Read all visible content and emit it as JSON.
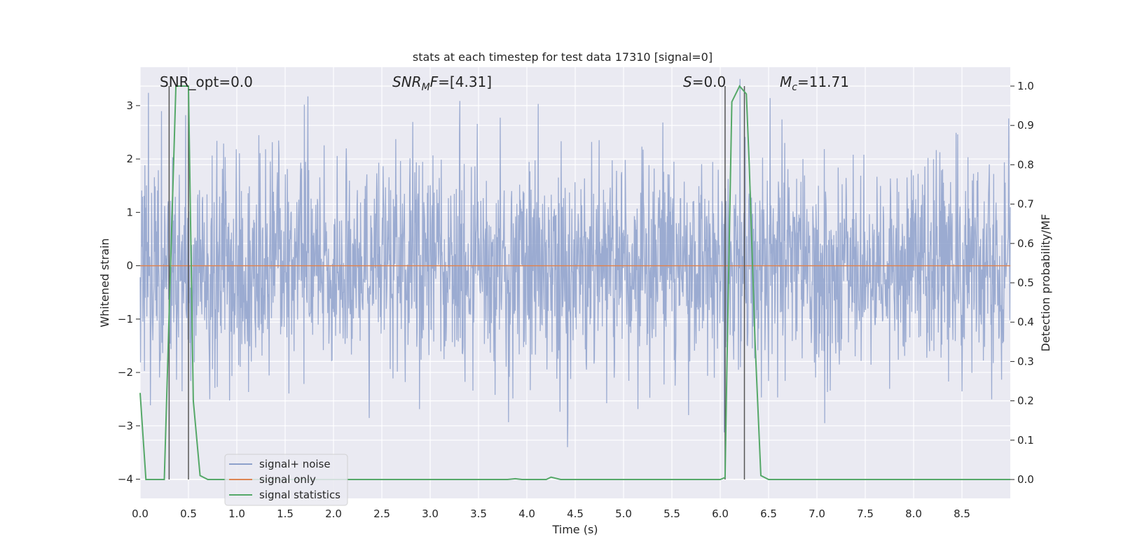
{
  "chart_data": {
    "type": "line",
    "title": "stats at each timestep for test data 17310 [signal=0]",
    "xlabel": "Time (s)",
    "ylabel_left": "Whitened strain",
    "ylabel_right": "Detection probability/MF",
    "xlim": [
      0.0,
      9.0
    ],
    "ylim_left": [
      -4.36,
      3.72
    ],
    "ylim_right": [
      -0.048,
      1.048
    ],
    "grid": true,
    "legend_position": "lower-left",
    "x_ticks": [
      "0.0",
      "0.5",
      "1.0",
      "1.5",
      "2.0",
      "2.5",
      "3.0",
      "3.5",
      "4.0",
      "4.5",
      "5.0",
      "5.5",
      "6.0",
      "6.5",
      "7.0",
      "7.5",
      "8.0",
      "8.5"
    ],
    "y_left_ticks": [
      "3",
      "2",
      "1",
      "0",
      "−1",
      "−2",
      "−3",
      "−4"
    ],
    "y_right_ticks": [
      "1.0",
      "0.9",
      "0.8",
      "0.7",
      "0.6",
      "0.5",
      "0.4",
      "0.3",
      "0.2",
      "0.1",
      "0.0"
    ],
    "annotations": {
      "snr_opt": "SNR_opt=0.0",
      "snr_mf": "=[4.31]",
      "s": "=0.0",
      "mc": "=11.71"
    },
    "vertical_lines_x": [
      0.3,
      0.5,
      6.05,
      6.25
    ],
    "series": [
      {
        "name": "signal+ noise",
        "color": "#8da0cb",
        "description_values": "whitened noisy strain, approx. Gaussian noise with envelope about ±2 and spikes to ±3.5"
      },
      {
        "name": "signal only",
        "color": "#dd8452",
        "values_constant": 0.0
      },
      {
        "name": "signal statistics",
        "color": "#55a868",
        "x": [
          0.0,
          0.06,
          0.25,
          0.3,
          0.37,
          0.5,
          0.55,
          0.62,
          0.7,
          3.8,
          3.88,
          3.95,
          4.2,
          4.25,
          4.35,
          6.0,
          6.05,
          6.07,
          6.12,
          6.2,
          6.27,
          6.3,
          6.36,
          6.42,
          6.5,
          9.0
        ],
        "values": [
          0.22,
          0.0,
          0.0,
          0.42,
          1.0,
          1.0,
          0.2,
          0.01,
          0.0,
          0.0,
          0.002,
          0.0,
          0.0,
          0.006,
          0.0,
          0.0,
          0.005,
          0.3,
          0.96,
          1.0,
          0.98,
          0.8,
          0.35,
          0.01,
          0.0,
          0.0
        ]
      }
    ]
  },
  "legend": {
    "items": [
      {
        "label": "signal+ noise",
        "color": "#8da0cb"
      },
      {
        "label": "signal only",
        "color": "#dd8452"
      },
      {
        "label": "signal statistics",
        "color": "#55a868"
      }
    ]
  }
}
